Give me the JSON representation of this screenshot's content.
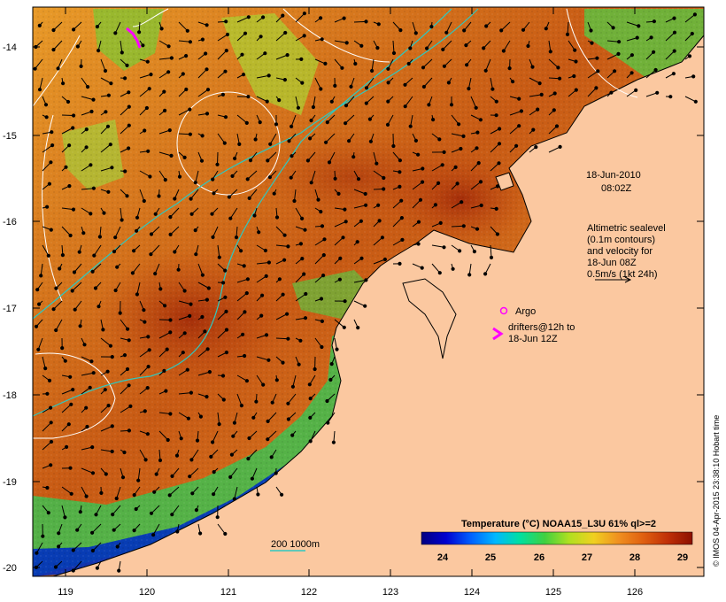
{
  "map": {
    "lat_ticks": [
      "-14",
      "-15",
      "-16",
      "-17",
      "-18",
      "-19",
      "-20"
    ],
    "lon_ticks": [
      "119",
      "120",
      "121",
      "122",
      "123",
      "124",
      "125",
      "126"
    ],
    "colors": {
      "land": "#fbc8a0",
      "contour_sealevel": "#ffffff",
      "contour_bathymetry": "#2ec8c0",
      "drifter": "#ff00ff",
      "argo": "#ff00ff",
      "coast": "#000000"
    }
  },
  "annotations": {
    "datetime_line1": "18-Jun-2010",
    "datetime_line2": "08:02Z",
    "altimetry": [
      "Altimetric sealevel",
      "(0.1m contours)",
      "and velocity for",
      "18-Jun 08Z",
      "0.5m/s (1kt 24h)"
    ],
    "argo_label": "Argo",
    "drifter_lines": [
      "drifters@12h to",
      "18-Jun 12Z"
    ],
    "bathymetry_label": "200  1000m"
  },
  "colorbar": {
    "title": "Temperature (°C) NOAA15_L3U 61% ql>=2",
    "ticks": [
      "24",
      "25",
      "26",
      "27",
      "28",
      "29"
    ],
    "stops": [
      "#000080",
      "#0000d0",
      "#0060ff",
      "#00b8ff",
      "#00e0a0",
      "#40d040",
      "#b0e020",
      "#f0d020",
      "#f09020",
      "#e06010",
      "#c03008",
      "#8c1000"
    ]
  },
  "credit": "© IMOS 04-Apr-2015 23:38:10 Hobart time"
}
